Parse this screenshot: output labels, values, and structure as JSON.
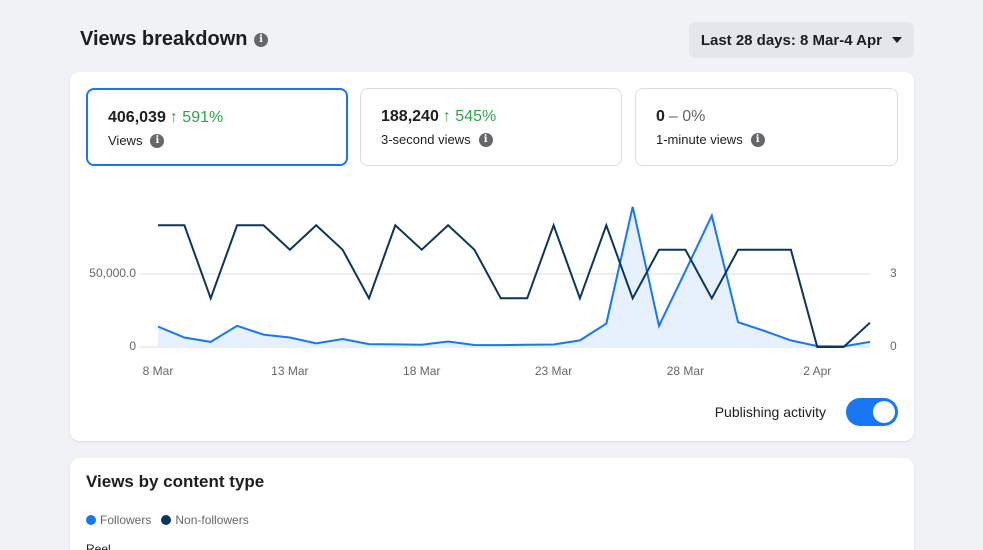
{
  "header": {
    "title": "Views breakdown",
    "date_range": "Last 28 days: 8 Mar-4 Apr"
  },
  "metrics": [
    {
      "value": "406,039",
      "delta": "↑ 591%",
      "label": "Views",
      "selected": true
    },
    {
      "value": "188,240",
      "delta": "↑ 545%",
      "label": "3-second views",
      "selected": false
    },
    {
      "value": "0",
      "delta": "– 0%",
      "label": "1-minute views",
      "selected": false
    }
  ],
  "colors": {
    "views_line": "#1877f2",
    "publishing_line": "#0a3560",
    "positive": "#31a24c",
    "toggle_on": "#1877f2"
  },
  "chart_data": {
    "type": "line",
    "x": [
      "8 Mar",
      "9 Mar",
      "10 Mar",
      "11 Mar",
      "12 Mar",
      "13 Mar",
      "14 Mar",
      "15 Mar",
      "16 Mar",
      "17 Mar",
      "18 Mar",
      "19 Mar",
      "20 Mar",
      "21 Mar",
      "22 Mar",
      "23 Mar",
      "24 Mar",
      "25 Mar",
      "26 Mar",
      "27 Mar",
      "28 Mar",
      "29 Mar",
      "30 Mar",
      "31 Mar",
      "1 Apr",
      "2 Apr",
      "3 Apr",
      "4 Apr"
    ],
    "x_tick_labels": [
      "8 Mar",
      "13 Mar",
      "18 Mar",
      "23 Mar",
      "28 Mar",
      "2 Apr"
    ],
    "y_left_ticks": [
      "0",
      "50,000.0"
    ],
    "y_right_ticks": [
      "0",
      "3"
    ],
    "ylim_left": [
      0,
      100000
    ],
    "ylim_right": [
      0,
      6
    ],
    "grid": true,
    "series": [
      {
        "axis": "left",
        "area": true,
        "values": [
          14000,
          6500,
          3500,
          14500,
          8500,
          6500,
          2500,
          5500,
          2000,
          1800,
          1600,
          3800,
          1400,
          1300,
          1500,
          1700,
          4500,
          16000,
          96000,
          14500,
          52000,
          90000,
          17000,
          11000,
          4500,
          600,
          400,
          3500
        ]
      },
      {
        "axis": "right",
        "area": false,
        "values": [
          5,
          5,
          2,
          5,
          5,
          4,
          5,
          4,
          2,
          5,
          4,
          5,
          4,
          2,
          2,
          5,
          2,
          5,
          2,
          4,
          4,
          2,
          4,
          4,
          4,
          0,
          0,
          1
        ]
      }
    ]
  },
  "publishing": {
    "label": "Publishing activity",
    "enabled": true
  },
  "content_type": {
    "title": "Views by content type",
    "legend": [
      {
        "label": "Followers",
        "color": "#1877f2"
      },
      {
        "label": "Non-followers",
        "color": "#0a3560"
      }
    ],
    "first_row": "Reel"
  }
}
